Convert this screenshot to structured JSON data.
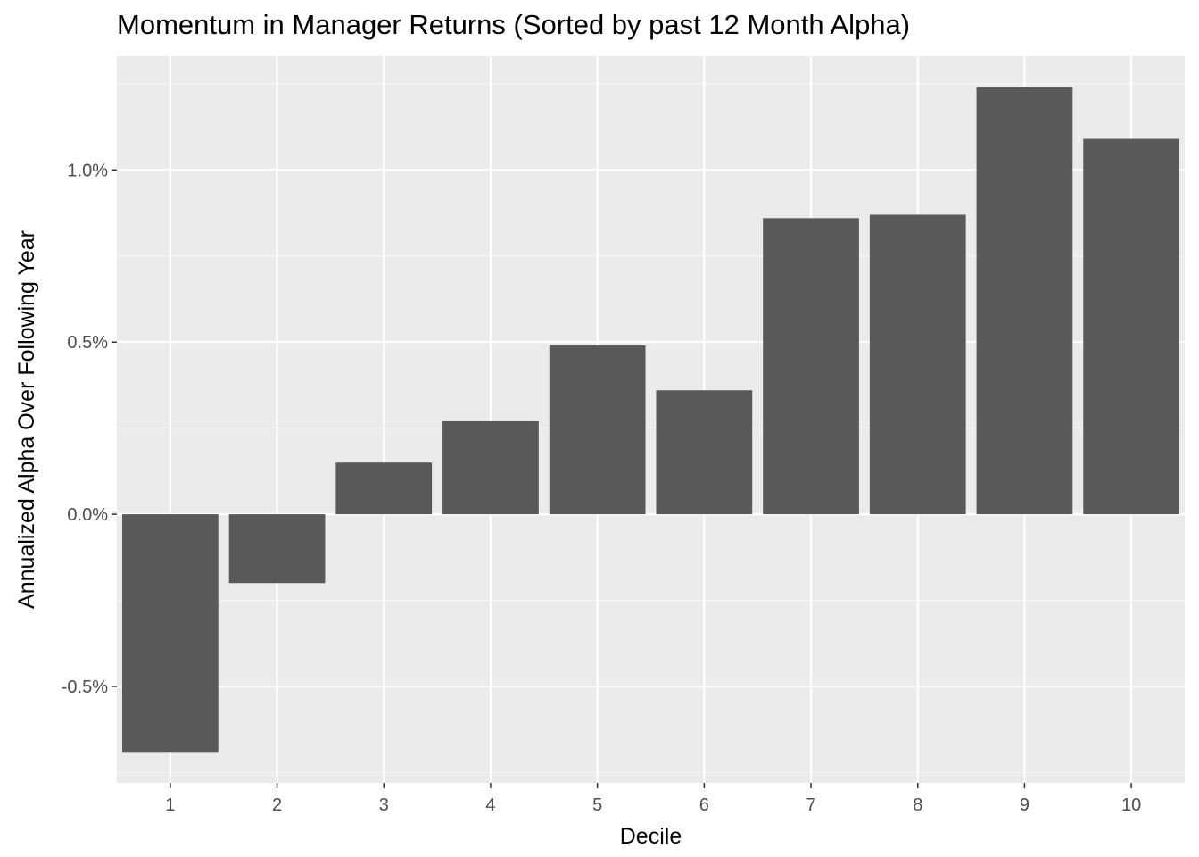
{
  "chart_data": {
    "type": "bar",
    "title": "Momentum in Manager Returns (Sorted by past 12 Month Alpha)",
    "xlabel": "Decile",
    "ylabel": "Annualized Alpha Over Following Year",
    "categories": [
      "1",
      "2",
      "3",
      "4",
      "5",
      "6",
      "7",
      "8",
      "9",
      "10"
    ],
    "values": [
      -0.69,
      -0.2,
      0.15,
      0.27,
      0.49,
      0.36,
      0.86,
      0.87,
      1.24,
      1.09
    ],
    "y_unit": "%",
    "yticks": [
      -0.5,
      0.0,
      0.5,
      1.0
    ],
    "ytick_labels": [
      "-0.5%",
      "0.0%",
      "0.5%",
      "1.0%"
    ],
    "ylim": [
      -0.78,
      1.33
    ],
    "grid": true,
    "colors": {
      "bar": "#595959",
      "panel": "#ebebeb",
      "grid_major": "#ffffff",
      "grid_minor": "#f7f7f7",
      "tick_text": "#4d4d4d",
      "axis_title": "#000000"
    }
  }
}
